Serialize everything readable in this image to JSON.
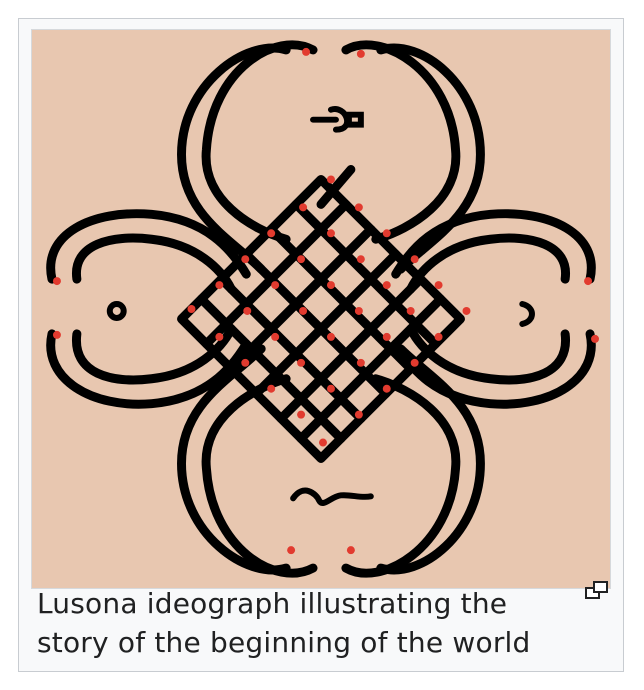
{
  "figure": {
    "caption": "Lusona ideograph illustrating the story of the beginning of the world",
    "image_alt": "Lusona ideograph",
    "colors": {
      "background": "#e8c7b0",
      "line": "#000000",
      "dots": "#e23b2f",
      "frame": "#f8f9fa"
    },
    "magnify_icon": "enlarge-icon"
  }
}
